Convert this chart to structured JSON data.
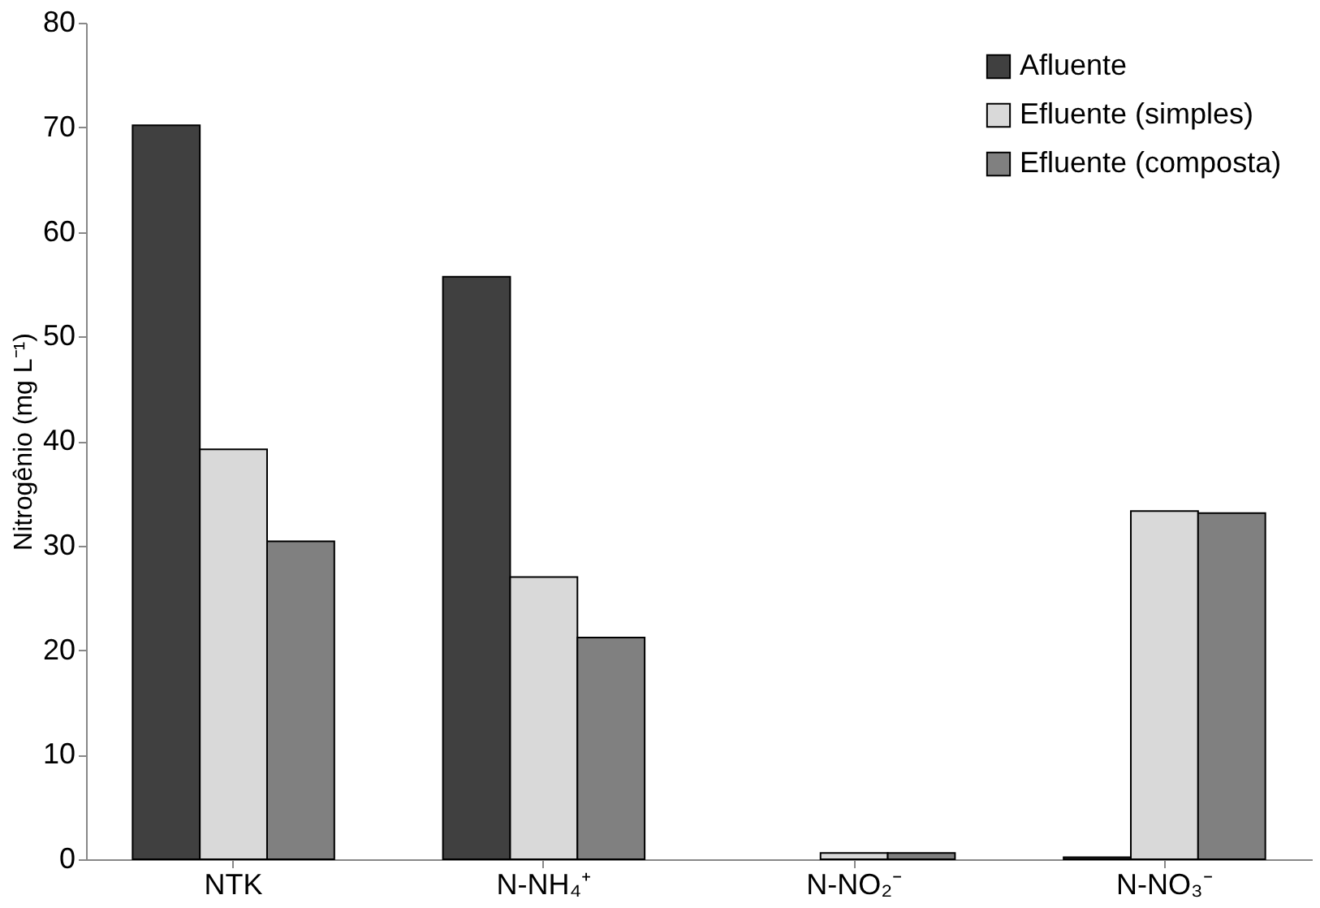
{
  "chart_data": {
    "type": "bar",
    "ylabel": "Nitrogênio (mg L⁻¹)",
    "categories": [
      "NTK",
      "N-NH₄⁺",
      "N-NO₂⁻",
      "N-NO₃⁻"
    ],
    "series": [
      {
        "name": "Afluente",
        "color": "#404040",
        "values": [
          70.2,
          55.7,
          null,
          0.2
        ]
      },
      {
        "name": "Efluente (simples)",
        "color": "#d9d9d9",
        "values": [
          39.2,
          27.0,
          0.6,
          33.3
        ]
      },
      {
        "name": "Efluente (composta)",
        "color": "#808080",
        "values": [
          30.4,
          21.2,
          0.6,
          33.1
        ]
      }
    ],
    "ylim": [
      0,
      80
    ],
    "yticks": [
      0,
      10,
      20,
      30,
      40,
      50,
      60,
      70,
      80
    ],
    "grid": false,
    "legend": "top right"
  }
}
